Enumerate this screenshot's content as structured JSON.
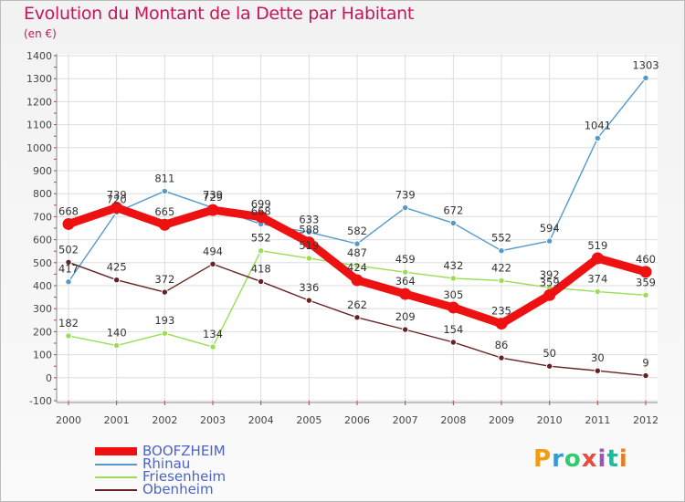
{
  "header": {
    "title": "Evolution du Montant de la Dette par Habitant",
    "unit": "(en €)"
  },
  "logo": {
    "text": "Proxiti",
    "colors": [
      "#f39c12",
      "#3498db",
      "#2ecc71",
      "#e74c3c",
      "#9b59b6",
      "#1abc9c",
      "#e67e22"
    ]
  },
  "chart_data": {
    "type": "line",
    "title": "Evolution du Montant de la Dette par Habitant",
    "subtitle": "(en €)",
    "xlabel": "",
    "ylabel": "",
    "x": [
      "2000",
      "2001",
      "2002",
      "2003",
      "2004",
      "2005",
      "2006",
      "2007",
      "2008",
      "2009",
      "2010",
      "2011",
      "2012"
    ],
    "ylim": [
      -100,
      1400
    ],
    "yticks": [
      -100,
      0,
      100,
      200,
      300,
      400,
      500,
      600,
      700,
      800,
      900,
      1000,
      1100,
      1200,
      1300,
      1400
    ],
    "grid": true,
    "legend": "bottom-left",
    "series": [
      {
        "name": "BOOFZHEIM",
        "color": "#ee1111",
        "emphasis": true,
        "values": [
          668,
          739,
          665,
          729,
          699,
          588,
          424,
          364,
          305,
          235,
          359,
          519,
          460
        ]
      },
      {
        "name": "Rhinau",
        "color": "#5599cc",
        "emphasis": false,
        "values": [
          417,
          720,
          811,
          739,
          668,
          633,
          582,
          739,
          672,
          552,
          594,
          1041,
          1303
        ]
      },
      {
        "name": "Friesenheim",
        "color": "#99dd55",
        "emphasis": false,
        "values": [
          182,
          140,
          193,
          134,
          552,
          519,
          487,
          459,
          432,
          422,
          392,
          374,
          359
        ]
      },
      {
        "name": "Obenheim",
        "color": "#662222",
        "emphasis": false,
        "values": [
          502,
          425,
          372,
          494,
          418,
          336,
          262,
          209,
          154,
          86,
          50,
          30,
          9
        ]
      }
    ]
  }
}
